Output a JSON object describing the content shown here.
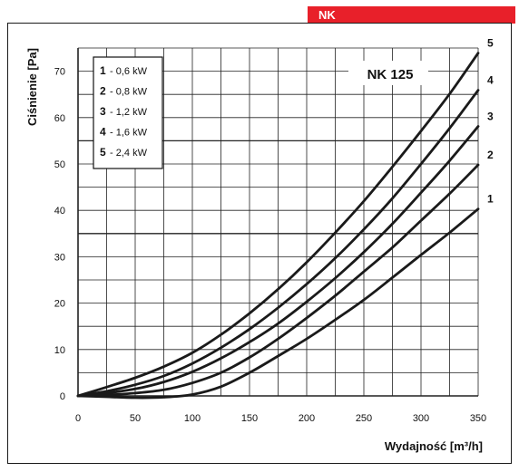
{
  "header": {
    "tag": "NK"
  },
  "chart_data": {
    "type": "line",
    "model_label": "NK 125",
    "xlabel": "Wydajność [m³/h]",
    "ylabel": "Ciśnienie [Pa]",
    "xlim": [
      0,
      350
    ],
    "ylim": [
      0,
      75
    ],
    "x_ticks": [
      0,
      50,
      100,
      150,
      200,
      250,
      300,
      350
    ],
    "y_ticks": [
      0,
      10,
      20,
      30,
      40,
      50,
      60,
      70
    ],
    "grid": true,
    "legend_position": "top-left",
    "legend": [
      {
        "num": "1",
        "text": "- 0,6  kW"
      },
      {
        "num": "2",
        "text": "- 0,8  kW"
      },
      {
        "num": "3",
        "text": "- 1,2  kW"
      },
      {
        "num": "4",
        "text": "- 1,6  kW"
      },
      {
        "num": "5",
        "text": "- 2,4  kW"
      }
    ],
    "series": [
      {
        "name": "1",
        "x": [
          0,
          25,
          50,
          75,
          100,
          125,
          150,
          175,
          200,
          225,
          250,
          275,
          300,
          325,
          350
        ],
        "y": [
          0,
          -0.2,
          -0.4,
          -0.3,
          0.3,
          2.0,
          5.0,
          8.6,
          12.3,
          16.4,
          20.7,
          25.5,
          30.4,
          35.2,
          40.3
        ]
      },
      {
        "name": "2",
        "x": [
          0,
          25,
          50,
          75,
          100,
          125,
          150,
          175,
          200,
          225,
          250,
          275,
          300,
          325,
          350
        ],
        "y": [
          0,
          0.2,
          0.6,
          1.3,
          2.8,
          5.0,
          8.3,
          12.3,
          16.8,
          21.6,
          26.8,
          32.0,
          37.8,
          43.6,
          49.8
        ]
      },
      {
        "name": "3",
        "x": [
          0,
          25,
          50,
          75,
          100,
          125,
          150,
          175,
          200,
          225,
          250,
          275,
          300,
          325,
          350
        ],
        "y": [
          0,
          0.6,
          1.5,
          3.0,
          5.2,
          8.1,
          11.6,
          15.6,
          20.3,
          25.4,
          31.0,
          37.1,
          43.8,
          50.7,
          58.1
        ]
      },
      {
        "name": "4",
        "x": [
          0,
          25,
          50,
          75,
          100,
          125,
          150,
          175,
          200,
          225,
          250,
          275,
          300,
          325,
          350
        ],
        "y": [
          0,
          1.0,
          2.4,
          4.3,
          7.0,
          10.4,
          14.4,
          19.0,
          24.1,
          29.7,
          35.9,
          42.6,
          50.0,
          57.7,
          65.9
        ]
      },
      {
        "name": "5",
        "x": [
          0,
          25,
          50,
          75,
          100,
          125,
          150,
          175,
          200,
          225,
          250,
          275,
          300,
          325,
          350
        ],
        "y": [
          0,
          1.9,
          3.9,
          6.3,
          9.3,
          13.2,
          17.8,
          23.0,
          28.8,
          35.2,
          42.0,
          49.4,
          57.1,
          65.1,
          73.9
        ]
      }
    ]
  }
}
